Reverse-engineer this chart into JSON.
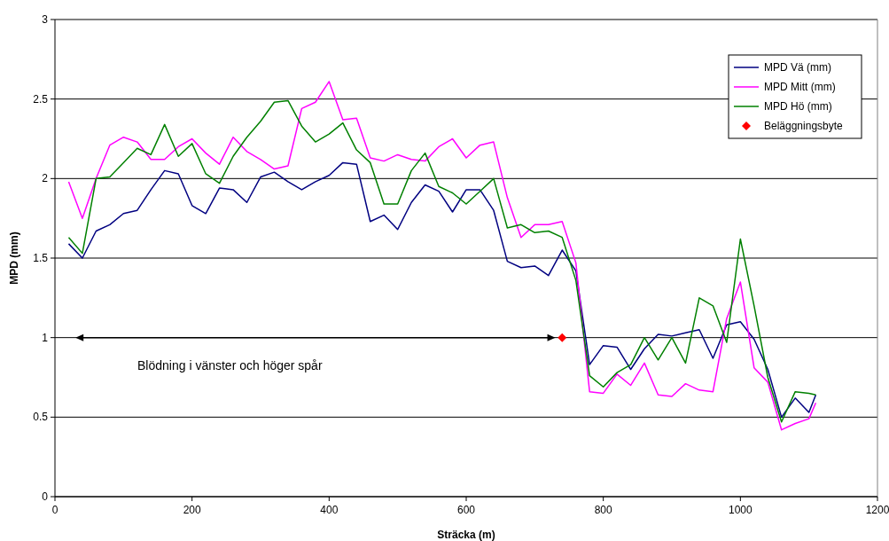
{
  "chart_data": {
    "type": "line",
    "xlabel": "Sträcka (m)",
    "ylabel": "MPD (mm)",
    "x": [
      20,
      40,
      60,
      80,
      100,
      120,
      140,
      160,
      180,
      200,
      220,
      240,
      260,
      280,
      300,
      320,
      340,
      360,
      380,
      400,
      420,
      440,
      460,
      480,
      500,
      520,
      540,
      560,
      580,
      600,
      620,
      640,
      660,
      680,
      700,
      720,
      740,
      760,
      780,
      800,
      820,
      840,
      860,
      880,
      900,
      920,
      940,
      960,
      980,
      1000,
      1020,
      1040,
      1060,
      1080,
      1100,
      1110
    ],
    "series": [
      {
        "name": "MPD Vä (mm)",
        "color": "#000080",
        "values": [
          1.59,
          1.5,
          1.67,
          1.71,
          1.78,
          1.8,
          1.93,
          2.05,
          2.03,
          1.83,
          1.78,
          1.94,
          1.93,
          1.85,
          2.01,
          2.04,
          1.98,
          1.93,
          1.98,
          2.02,
          2.1,
          2.09,
          1.73,
          1.77,
          1.68,
          1.85,
          1.96,
          1.92,
          1.79,
          1.93,
          1.93,
          1.8,
          1.48,
          1.44,
          1.45,
          1.39,
          1.55,
          1.42,
          0.83,
          0.95,
          0.94,
          0.8,
          0.93,
          1.02,
          1.01,
          1.03,
          1.05,
          0.87,
          1.08,
          1.1,
          0.99,
          0.8,
          0.5,
          0.62,
          0.53,
          0.64
        ]
      },
      {
        "name": "MPD Mitt (mm)",
        "color": "#ff00ff",
        "values": [
          1.98,
          1.75,
          2.0,
          2.21,
          2.26,
          2.23,
          2.12,
          2.12,
          2.2,
          2.25,
          2.16,
          2.09,
          2.26,
          2.17,
          2.12,
          2.06,
          2.08,
          2.44,
          2.48,
          2.61,
          2.37,
          2.38,
          2.13,
          2.11,
          2.15,
          2.12,
          2.11,
          2.2,
          2.25,
          2.13,
          2.21,
          2.23,
          1.88,
          1.63,
          1.71,
          1.71,
          1.73,
          1.47,
          0.66,
          0.65,
          0.77,
          0.7,
          0.84,
          0.64,
          0.63,
          0.71,
          0.67,
          0.66,
          1.12,
          1.35,
          0.81,
          0.72,
          0.42,
          0.46,
          0.49,
          0.59
        ]
      },
      {
        "name": "MPD Hö (mm)",
        "color": "#008000",
        "values": [
          1.63,
          1.53,
          2.0,
          2.01,
          2.1,
          2.19,
          2.15,
          2.34,
          2.14,
          2.22,
          2.03,
          1.97,
          2.14,
          2.26,
          2.36,
          2.48,
          2.49,
          2.33,
          2.23,
          2.28,
          2.35,
          2.18,
          2.1,
          1.84,
          1.84,
          2.05,
          2.16,
          1.95,
          1.91,
          1.84,
          1.92,
          2.0,
          1.69,
          1.71,
          1.66,
          1.67,
          1.63,
          1.36,
          0.76,
          0.69,
          0.78,
          0.83,
          1.0,
          0.86,
          1.0,
          0.84,
          1.25,
          1.2,
          0.97,
          1.62,
          1.2,
          0.75,
          0.47,
          0.66,
          0.65,
          0.64
        ]
      },
      {
        "name": "Beläggningsbyte",
        "type": "scatter",
        "marker": "diamond",
        "color": "#ff0000",
        "x": [
          740
        ],
        "values": [
          1.0
        ]
      }
    ],
    "xlim": [
      0,
      1200
    ],
    "xticks": [
      0,
      200,
      400,
      600,
      800,
      1000,
      1200
    ],
    "ylim": [
      0,
      3
    ],
    "yticks": [
      0,
      0.5,
      1,
      1.5,
      2,
      2.5,
      3
    ],
    "grid": "y",
    "legend": "top right",
    "marker": "none",
    "line_style": "solid",
    "annotations": [
      "Blödning i vänster och höger spår"
    ]
  }
}
